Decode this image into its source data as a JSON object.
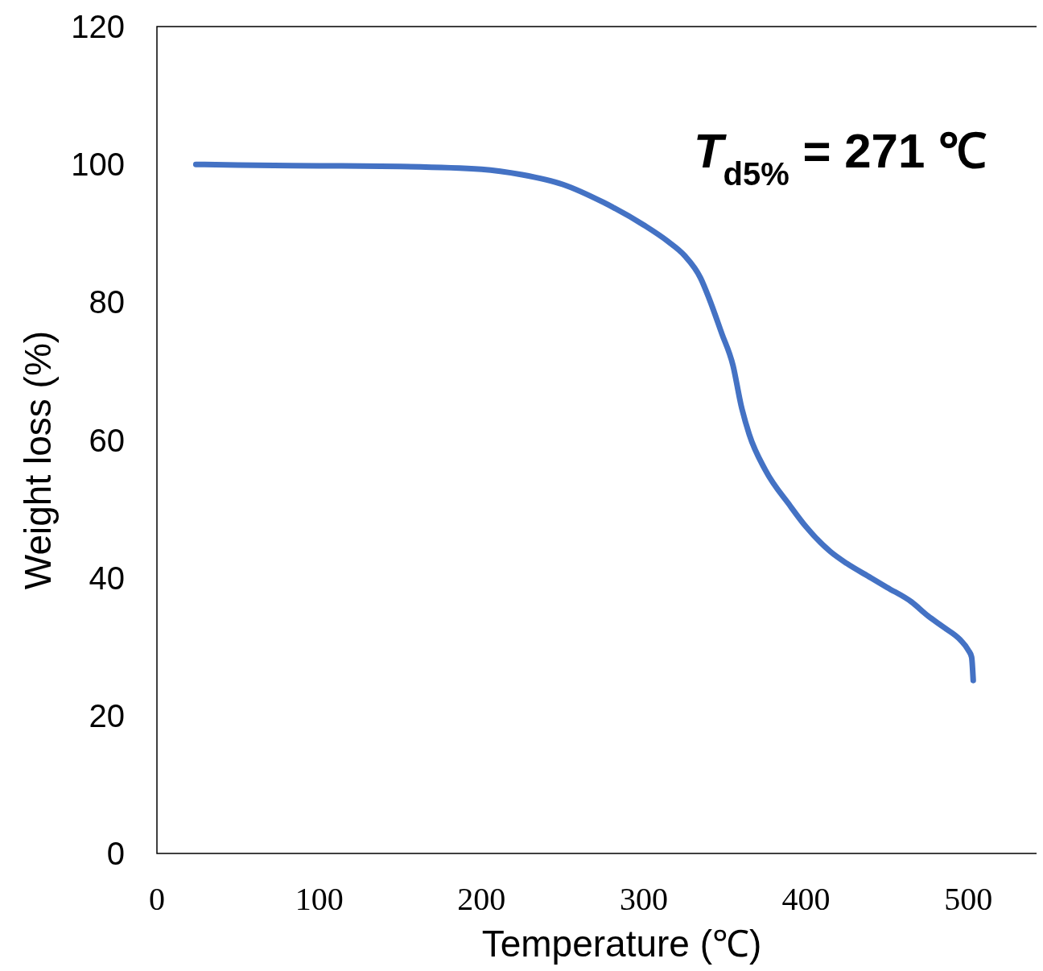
{
  "chart_data": {
    "type": "line",
    "xlabel": "Temperature (℃)",
    "ylabel": "Weight loss (%)",
    "annotations": [
      "T$_{d5%}$ = 271 ℃"
    ],
    "series": [
      {
        "color": "#4472c4",
        "x": [
          24,
          50,
          100,
          150,
          200,
          225,
          250,
          275,
          300,
          315,
          325,
          335,
          340,
          348,
          355,
          360,
          365,
          375,
          390,
          400,
          415,
          425,
          440,
          450,
          465,
          475,
          485,
          495,
          500,
          502,
          503
        ],
        "values": [
          100,
          99.9,
          99.8,
          99.7,
          99.3,
          98.5,
          97.1,
          94.5,
          91.2,
          88.8,
          86.8,
          83.5,
          80.7,
          75.5,
          70.8,
          65,
          60.8,
          55.6,
          50.5,
          47.4,
          43.8,
          42.1,
          40,
          38.6,
          36.5,
          34.5,
          32.8,
          31,
          29.5,
          28.5,
          25.1
        ]
      }
    ],
    "xlim": [
      0,
      546
    ],
    "xticks": [
      0,
      100,
      200,
      300,
      400,
      500
    ],
    "ylim": [
      0,
      120
    ],
    "yticks": [
      0,
      20,
      40,
      60,
      80,
      100,
      120
    ],
    "grid": false,
    "marker": "none",
    "line_style": "solid"
  }
}
